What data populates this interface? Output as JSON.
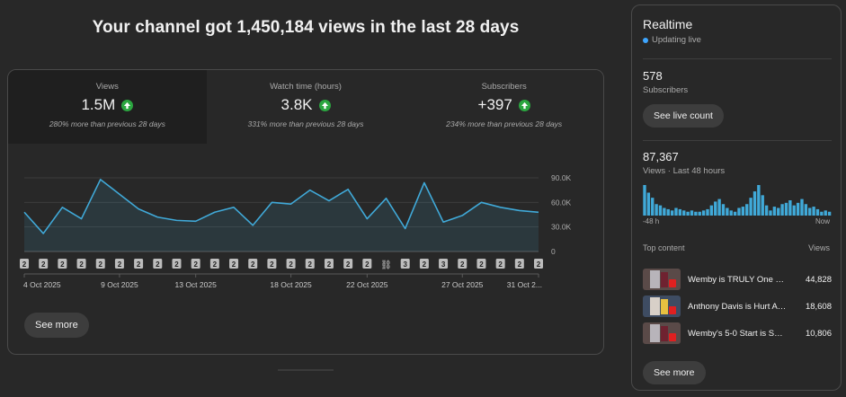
{
  "headline": "Your channel got 1,450,184 views in the last 28 days",
  "metrics": [
    {
      "label": "Views",
      "value": "1.5M",
      "change": "280% more than previous 28 days"
    },
    {
      "label": "Watch time (hours)",
      "value": "3.8K",
      "change": "331% more than previous 28 days"
    },
    {
      "label": "Subscribers",
      "value": "+397",
      "change": "234% more than previous 28 days"
    }
  ],
  "chart_data": {
    "type": "area",
    "x": [
      "4 Oct",
      "5 Oct",
      "6 Oct",
      "7 Oct",
      "8 Oct",
      "9 Oct",
      "10 Oct",
      "11 Oct",
      "12 Oct",
      "13 Oct",
      "14 Oct",
      "15 Oct",
      "16 Oct",
      "17 Oct",
      "18 Oct",
      "19 Oct",
      "20 Oct",
      "21 Oct",
      "22 Oct",
      "23 Oct",
      "24 Oct",
      "25 Oct",
      "26 Oct",
      "27 Oct",
      "28 Oct",
      "29 Oct",
      "30 Oct",
      "31 Oct"
    ],
    "series": [
      {
        "values": [
          48000,
          22000,
          54000,
          40000,
          88000,
          70000,
          52000,
          42000,
          38000,
          37000,
          48000,
          54000,
          32000,
          60000,
          58000,
          75000,
          62000,
          76000,
          40000,
          65000,
          28000,
          84000,
          36000,
          44000,
          60000,
          54000,
          50000,
          48000
        ]
      }
    ],
    "ylim": [
      0,
      90000
    ],
    "yticks": [
      "0",
      "30.0K",
      "60.0K",
      "90.0K"
    ],
    "xtick_labels": [
      "4 Oct 2025",
      "9 Oct 2025",
      "13 Oct 2025",
      "18 Oct 2025",
      "22 Oct 2025",
      "27 Oct 2025",
      "31 Oct 2..."
    ],
    "xtick_index": [
      0,
      5,
      9,
      14,
      18,
      23,
      27
    ],
    "markers": [
      "2",
      "2",
      "2",
      "2",
      "2",
      "2",
      "2",
      "2",
      "2",
      "2",
      "2",
      "2",
      "2",
      "2",
      "2",
      "2",
      "2",
      "2",
      "2",
      "link",
      "3",
      "2",
      "3",
      "2",
      "2",
      "2",
      "2",
      "2"
    ]
  },
  "see_more": "See more",
  "realtime": {
    "title": "Realtime",
    "status": "Updating live",
    "subscribers": "578",
    "subscribers_label": "Subscribers",
    "live_button": "See live count",
    "views": "87,367",
    "views_label": "Views · Last 48 hours",
    "axis_start": "-48 h",
    "axis_end": "Now",
    "hourly_views": [
      24,
      18,
      14,
      9,
      8,
      6,
      5,
      4,
      6,
      5,
      4,
      3,
      4,
      3,
      3,
      4,
      5,
      8,
      11,
      13,
      9,
      6,
      4,
      3,
      6,
      7,
      9,
      14,
      19,
      24,
      16,
      8,
      4,
      7,
      6,
      9,
      10,
      12,
      8,
      10,
      13,
      9,
      6,
      7,
      5,
      3,
      4,
      3
    ],
    "top_content_label": "Top content",
    "views_col_label": "Views",
    "videos": [
      {
        "title": "Wemby is TRULY One of A Kind",
        "views": "44,828"
      },
      {
        "title": "Anthony Davis is Hurt Again",
        "views": "18,608"
      },
      {
        "title": "Wemby's 5-0 Start is Scary",
        "views": "10,806"
      }
    ],
    "see_more": "See more"
  },
  "colors": {
    "line": "#40a9d8",
    "up": "#2ba640",
    "live": "#3ea6ff"
  }
}
